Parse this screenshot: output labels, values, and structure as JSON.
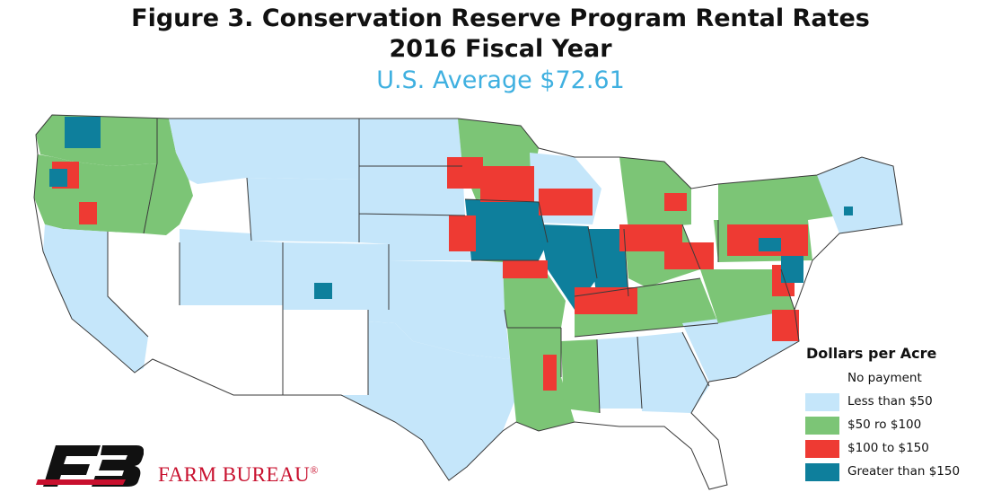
{
  "title": {
    "line1": "Figure 3. Conservation Reserve Program Rental Rates",
    "line2": "2016 Fiscal Year",
    "line3": "U.S. Average $72.61"
  },
  "legend": {
    "title": "Dollars per Acre",
    "items": [
      {
        "label": "No payment",
        "color": "#ffffff"
      },
      {
        "label": "Less than $50",
        "color": "#c5e6fa"
      },
      {
        "label": "$50 ro $100",
        "color": "#7cc576"
      },
      {
        "label": "$100 to $150",
        "color": "#ee3a33"
      },
      {
        "label": "Greater than $150",
        "color": "#0e7f9c"
      }
    ]
  },
  "colors": {
    "none": "#ffffff",
    "lt50": "#c5e6fa",
    "r50_100": "#7cc576",
    "r100_150": "#ee3a33",
    "gt150": "#0e7f9c",
    "border": "#3a3a3a"
  },
  "brand": {
    "name": "FARM BUREAU",
    "mark": "®"
  }
}
